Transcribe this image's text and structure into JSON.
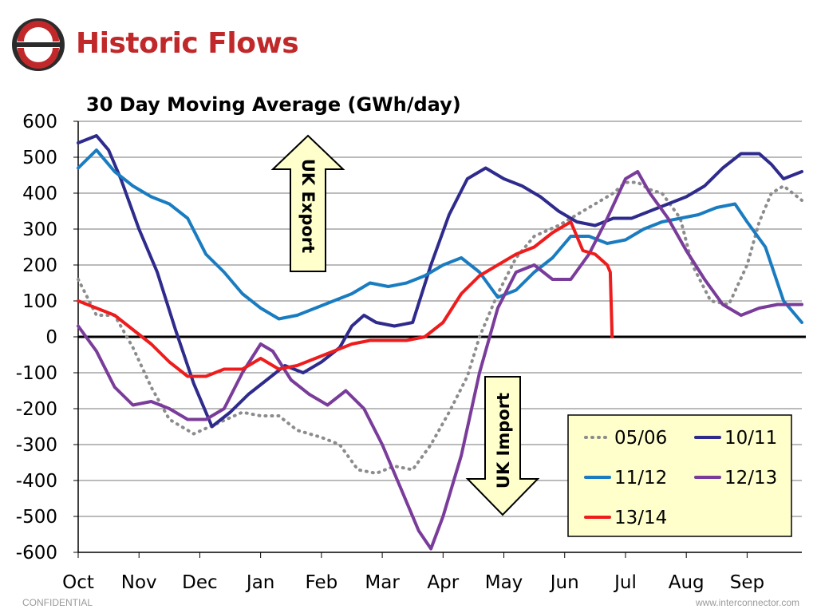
{
  "header": {
    "title": "Historic Flows"
  },
  "footer": {
    "left": "CONFIDENTIAL",
    "right": "www.interconnector.com"
  },
  "colors": {
    "brand_red": "#c0282a",
    "logo_dark": "#2b2b2b",
    "arrow_fill": "#ffffcc",
    "legend_fill": "#ffffcc"
  },
  "annotations": {
    "export_label": "UK Export",
    "import_label": "UK Import"
  },
  "chart_data": {
    "type": "line",
    "title": "30 Day Moving Average (GWh/day)",
    "xlabel": "",
    "ylabel": "",
    "categories": [
      "Oct",
      "Nov",
      "Dec",
      "Jan",
      "Feb",
      "Mar",
      "Apr",
      "May",
      "Jun",
      "Jul",
      "Aug",
      "Sep"
    ],
    "x_range": [
      0,
      11.9
    ],
    "ylim": [
      -600,
      600
    ],
    "yticks": [
      600,
      500,
      400,
      300,
      200,
      100,
      0,
      -100,
      -200,
      -300,
      -400,
      -500,
      -600
    ],
    "grid": true,
    "legend_position": "bottom-right",
    "series": [
      {
        "name": "05/06",
        "color": "#8c8c8c",
        "style": "dotted",
        "points": [
          [
            0,
            160
          ],
          [
            0.3,
            60
          ],
          [
            0.6,
            60
          ],
          [
            0.9,
            -30
          ],
          [
            1.2,
            -140
          ],
          [
            1.5,
            -230
          ],
          [
            1.9,
            -270
          ],
          [
            2.3,
            -240
          ],
          [
            2.7,
            -210
          ],
          [
            3.0,
            -220
          ],
          [
            3.3,
            -220
          ],
          [
            3.6,
            -260
          ],
          [
            4.0,
            -280
          ],
          [
            4.3,
            -300
          ],
          [
            4.6,
            -370
          ],
          [
            4.9,
            -380
          ],
          [
            5.2,
            -360
          ],
          [
            5.5,
            -370
          ],
          [
            5.8,
            -300
          ],
          [
            6.1,
            -210
          ],
          [
            6.4,
            -110
          ],
          [
            6.6,
            0
          ],
          [
            6.9,
            120
          ],
          [
            7.2,
            220
          ],
          [
            7.5,
            280
          ],
          [
            7.9,
            310
          ],
          [
            8.2,
            340
          ],
          [
            8.5,
            370
          ],
          [
            8.8,
            400
          ],
          [
            9.0,
            430
          ],
          [
            9.2,
            430
          ],
          [
            9.4,
            410
          ],
          [
            9.6,
            400
          ],
          [
            9.9,
            330
          ],
          [
            10.1,
            200
          ],
          [
            10.4,
            100
          ],
          [
            10.7,
            90
          ],
          [
            11.0,
            200
          ],
          [
            11.2,
            320
          ],
          [
            11.4,
            400
          ],
          [
            11.6,
            420
          ],
          [
            11.9,
            380
          ]
        ]
      },
      {
        "name": "10/11",
        "color": "#2e2b8c",
        "style": "solid",
        "points": [
          [
            0,
            540
          ],
          [
            0.3,
            560
          ],
          [
            0.5,
            520
          ],
          [
            0.7,
            440
          ],
          [
            1.0,
            300
          ],
          [
            1.3,
            180
          ],
          [
            1.6,
            20
          ],
          [
            1.9,
            -130
          ],
          [
            2.2,
            -250
          ],
          [
            2.5,
            -210
          ],
          [
            2.8,
            -160
          ],
          [
            3.1,
            -120
          ],
          [
            3.4,
            -80
          ],
          [
            3.7,
            -100
          ],
          [
            4.0,
            -70
          ],
          [
            4.3,
            -30
          ],
          [
            4.5,
            30
          ],
          [
            4.7,
            60
          ],
          [
            4.9,
            40
          ],
          [
            5.2,
            30
          ],
          [
            5.5,
            40
          ],
          [
            5.8,
            200
          ],
          [
            6.1,
            340
          ],
          [
            6.4,
            440
          ],
          [
            6.7,
            470
          ],
          [
            7.0,
            440
          ],
          [
            7.3,
            420
          ],
          [
            7.6,
            390
          ],
          [
            7.9,
            350
          ],
          [
            8.2,
            320
          ],
          [
            8.5,
            310
          ],
          [
            8.8,
            330
          ],
          [
            9.1,
            330
          ],
          [
            9.4,
            350
          ],
          [
            9.7,
            370
          ],
          [
            10.0,
            390
          ],
          [
            10.3,
            420
          ],
          [
            10.6,
            470
          ],
          [
            10.9,
            510
          ],
          [
            11.2,
            510
          ],
          [
            11.4,
            480
          ],
          [
            11.6,
            440
          ],
          [
            11.9,
            460
          ]
        ]
      },
      {
        "name": "11/12",
        "color": "#1a7cc0",
        "style": "solid",
        "points": [
          [
            0,
            470
          ],
          [
            0.3,
            520
          ],
          [
            0.6,
            460
          ],
          [
            0.9,
            420
          ],
          [
            1.2,
            390
          ],
          [
            1.5,
            370
          ],
          [
            1.8,
            330
          ],
          [
            2.1,
            230
          ],
          [
            2.4,
            180
          ],
          [
            2.7,
            120
          ],
          [
            3.0,
            80
          ],
          [
            3.3,
            50
          ],
          [
            3.6,
            60
          ],
          [
            3.9,
            80
          ],
          [
            4.2,
            100
          ],
          [
            4.5,
            120
          ],
          [
            4.8,
            150
          ],
          [
            5.1,
            140
          ],
          [
            5.4,
            150
          ],
          [
            5.7,
            170
          ],
          [
            6.0,
            200
          ],
          [
            6.3,
            220
          ],
          [
            6.6,
            180
          ],
          [
            6.9,
            110
          ],
          [
            7.2,
            130
          ],
          [
            7.5,
            180
          ],
          [
            7.8,
            220
          ],
          [
            8.1,
            280
          ],
          [
            8.4,
            280
          ],
          [
            8.7,
            260
          ],
          [
            9.0,
            270
          ],
          [
            9.3,
            300
          ],
          [
            9.6,
            320
          ],
          [
            9.9,
            330
          ],
          [
            10.2,
            340
          ],
          [
            10.5,
            360
          ],
          [
            10.8,
            370
          ],
          [
            11.0,
            320
          ],
          [
            11.3,
            250
          ],
          [
            11.6,
            100
          ],
          [
            11.9,
            40
          ]
        ]
      },
      {
        "name": "12/13",
        "color": "#7a3c9a",
        "style": "solid",
        "points": [
          [
            0,
            30
          ],
          [
            0.3,
            -40
          ],
          [
            0.6,
            -140
          ],
          [
            0.9,
            -190
          ],
          [
            1.2,
            -180
          ],
          [
            1.5,
            -200
          ],
          [
            1.8,
            -230
          ],
          [
            2.1,
            -230
          ],
          [
            2.4,
            -200
          ],
          [
            2.7,
            -100
          ],
          [
            3.0,
            -20
          ],
          [
            3.2,
            -40
          ],
          [
            3.5,
            -120
          ],
          [
            3.8,
            -160
          ],
          [
            4.1,
            -190
          ],
          [
            4.4,
            -150
          ],
          [
            4.7,
            -200
          ],
          [
            5.0,
            -300
          ],
          [
            5.3,
            -420
          ],
          [
            5.6,
            -540
          ],
          [
            5.8,
            -590
          ],
          [
            6.0,
            -500
          ],
          [
            6.3,
            -330
          ],
          [
            6.6,
            -100
          ],
          [
            6.9,
            80
          ],
          [
            7.2,
            180
          ],
          [
            7.5,
            200
          ],
          [
            7.8,
            160
          ],
          [
            8.1,
            160
          ],
          [
            8.4,
            230
          ],
          [
            8.7,
            330
          ],
          [
            9.0,
            440
          ],
          [
            9.2,
            460
          ],
          [
            9.4,
            400
          ],
          [
            9.7,
            330
          ],
          [
            10.0,
            240
          ],
          [
            10.3,
            160
          ],
          [
            10.6,
            90
          ],
          [
            10.9,
            60
          ],
          [
            11.2,
            80
          ],
          [
            11.5,
            90
          ],
          [
            11.9,
            90
          ]
        ]
      },
      {
        "name": "13/14",
        "color": "#ee1c1c",
        "style": "solid",
        "points": [
          [
            0,
            100
          ],
          [
            0.3,
            80
          ],
          [
            0.6,
            60
          ],
          [
            0.9,
            20
          ],
          [
            1.2,
            -20
          ],
          [
            1.5,
            -70
          ],
          [
            1.8,
            -110
          ],
          [
            2.1,
            -110
          ],
          [
            2.4,
            -90
          ],
          [
            2.7,
            -90
          ],
          [
            3.0,
            -60
          ],
          [
            3.3,
            -90
          ],
          [
            3.6,
            -80
          ],
          [
            3.9,
            -60
          ],
          [
            4.2,
            -40
          ],
          [
            4.5,
            -20
          ],
          [
            4.8,
            -10
          ],
          [
            5.1,
            -10
          ],
          [
            5.4,
            -10
          ],
          [
            5.7,
            0
          ],
          [
            6.0,
            40
          ],
          [
            6.3,
            120
          ],
          [
            6.6,
            170
          ],
          [
            6.9,
            200
          ],
          [
            7.2,
            230
          ],
          [
            7.5,
            250
          ],
          [
            7.8,
            290
          ],
          [
            8.1,
            320
          ],
          [
            8.3,
            240
          ],
          [
            8.5,
            230
          ],
          [
            8.7,
            200
          ],
          [
            8.75,
            180
          ],
          [
            8.78,
            0
          ]
        ]
      }
    ]
  }
}
